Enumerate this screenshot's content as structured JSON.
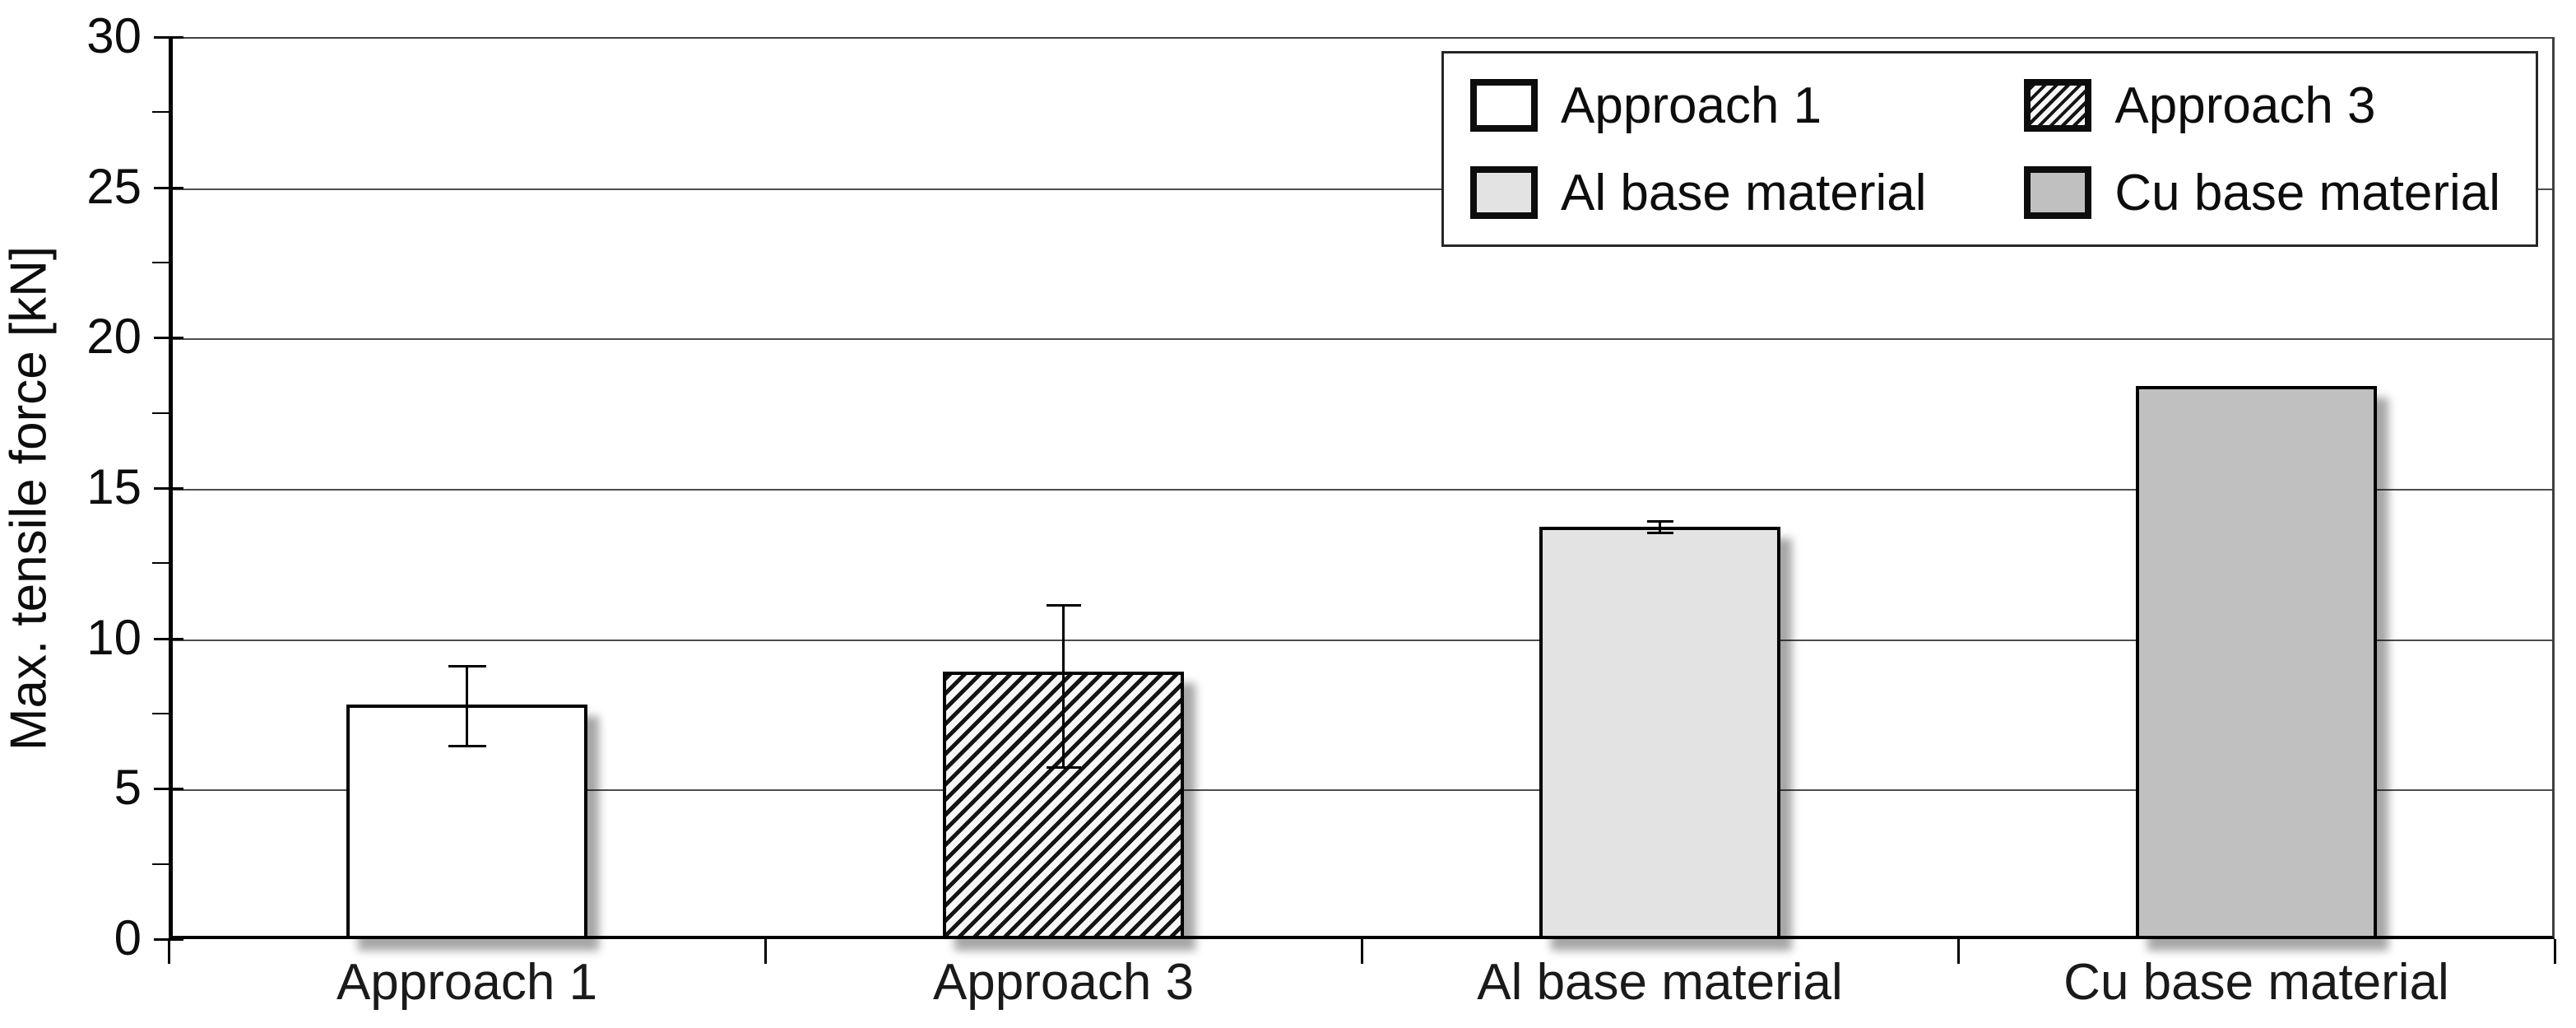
{
  "chart_data": {
    "type": "bar",
    "title": "",
    "ylabel": "Max. tensile force [kN]",
    "xlabel": "",
    "ylim": [
      0,
      30
    ],
    "yticks": [
      "0",
      "5",
      "10",
      "15",
      "20",
      "25",
      "30"
    ],
    "ytick_values": [
      0,
      5,
      10,
      15,
      20,
      25,
      30
    ],
    "minor_tick_values": [
      2.5,
      7.5,
      12.5,
      17.5,
      22.5,
      27.5
    ],
    "grid": "horizontal-major",
    "legend_position": "top-right",
    "categories": [
      "Approach 1",
      "Approach 3",
      "Al base material",
      "Cu base material"
    ],
    "values": [
      7.8,
      8.9,
      13.7,
      18.4
    ],
    "error_bars": [
      {
        "low": 6.4,
        "high": 9.1
      },
      {
        "low": 5.7,
        "high": 11.1
      },
      {
        "low": 13.5,
        "high": 13.9
      },
      null
    ],
    "bar_styles": [
      {
        "fill": "#ffffff",
        "pattern": "none"
      },
      {
        "fill": "#f7f7f7",
        "pattern": "diagonal-hatch"
      },
      {
        "fill": "#e3e3e3",
        "pattern": "none"
      },
      {
        "fill": "#c0c0c0",
        "pattern": "none"
      }
    ],
    "legend": {
      "entries": [
        {
          "label": "Approach 1",
          "fill": "#ffffff",
          "pattern": "none"
        },
        {
          "label": "Approach 3",
          "fill": "#f7f7f7",
          "pattern": "diagonal-hatch"
        },
        {
          "label": "Al base material",
          "fill": "#e3e3e3",
          "pattern": "none"
        },
        {
          "label": "Cu base material",
          "fill": "#c0c0c0",
          "pattern": "none"
        }
      ]
    }
  },
  "colors": {
    "background": "#ffffff",
    "axis": "#000000",
    "gridline": "#4d4d4d",
    "hatch_stroke": "#141414",
    "bar_border": "#000000",
    "text": "#0d0d0d"
  }
}
